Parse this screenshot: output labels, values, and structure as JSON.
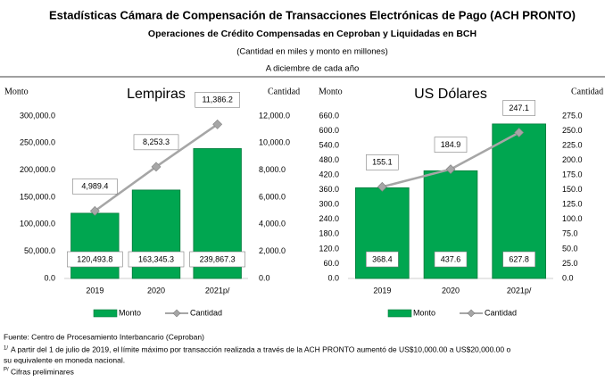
{
  "title": "Estadísticas Cámara de Compensación de Transacciones Electrónicas de Pago (ACH PRONTO)",
  "subtitle": "Operaciones de Crédito Compensadas en Ceproban y Liquidadas en BCH",
  "units_note": "(Cantidad en miles y monto en millones)",
  "date_note": "A diciembre de cada año",
  "chart_data": [
    {
      "type": "bar",
      "title": "Lempiras",
      "y_label": "Monto",
      "y2_label": "Cantidad",
      "categories": [
        "2019",
        "2020",
        "2021p/"
      ],
      "series": [
        {
          "name": "Monto",
          "type": "bar",
          "color": "#00a650",
          "values": [
            120493.8,
            163345.3,
            239867.3
          ],
          "value_labels": [
            "120,493.8",
            "163,345.3",
            "239,867.3"
          ]
        },
        {
          "name": "Cantidad",
          "type": "line",
          "axis": "y2",
          "color": "#a6a6a6",
          "values": [
            4989.4,
            8253.3,
            11386.2
          ],
          "value_labels": [
            "4,989.4",
            "8,253.3",
            "11,386.2"
          ]
        }
      ],
      "ylim": [
        0,
        300000
      ],
      "yticks": [
        {
          "value": 0,
          "label": "0.0"
        },
        {
          "value": 50000,
          "label": "50,000.0"
        },
        {
          "value": 100000,
          "label": "100,000.0"
        },
        {
          "value": 150000,
          "label": "150,000.0"
        },
        {
          "value": 200000,
          "label": "200,000.0"
        },
        {
          "value": 250000,
          "label": "250,000.0"
        },
        {
          "value": 300000,
          "label": "300,000.0"
        }
      ],
      "y2lim": [
        0,
        12000
      ],
      "y2ticks": [
        {
          "value": 0,
          "label": "0.0"
        },
        {
          "value": 2000,
          "label": "2,000.0"
        },
        {
          "value": 4000,
          "label": "4,000.0"
        },
        {
          "value": 6000,
          "label": "6,000.0"
        },
        {
          "value": 8000,
          "label": "8,000.0"
        },
        {
          "value": 10000,
          "label": "10,000.0"
        },
        {
          "value": 12000,
          "label": "12,000.0"
        }
      ],
      "legend": "bottom"
    },
    {
      "type": "bar",
      "title": "US Dólares",
      "y_label": "Monto",
      "y2_label": "Cantidad",
      "categories": [
        "2019",
        "2020",
        "2021p/"
      ],
      "series": [
        {
          "name": "Monto",
          "type": "bar",
          "color": "#00a650",
          "values": [
            368.4,
            437.6,
            627.8
          ]
        },
        {
          "name": "Cantidad",
          "type": "line",
          "axis": "y2",
          "color": "#a6a6a6",
          "values": [
            155.1,
            184.9,
            247.1
          ]
        }
      ],
      "ylim": [
        0,
        660
      ],
      "yticks": [
        {
          "value": 0,
          "label": "0.0"
        },
        {
          "value": 60,
          "label": "60.0"
        },
        {
          "value": 120,
          "label": "120.0"
        },
        {
          "value": 180,
          "label": "180.0"
        },
        {
          "value": 240,
          "label": "240.0"
        },
        {
          "value": 300,
          "label": "300.0"
        },
        {
          "value": 360,
          "label": "360.0"
        },
        {
          "value": 420,
          "label": "420.0"
        },
        {
          "value": 480,
          "label": "480.0"
        },
        {
          "value": 540,
          "label": "540.0"
        },
        {
          "value": 600,
          "label": "600.0"
        },
        {
          "value": 660,
          "label": "660.0"
        }
      ],
      "y2lim": [
        0,
        275
      ],
      "y2ticks": [
        {
          "value": 0,
          "label": "0.0"
        },
        {
          "value": 25,
          "label": "25.0"
        },
        {
          "value": 50,
          "label": "50.0"
        },
        {
          "value": 75,
          "label": "75.0"
        },
        {
          "value": 100,
          "label": "100.0"
        },
        {
          "value": 125,
          "label": "125.0"
        },
        {
          "value": 150,
          "label": "150.0"
        },
        {
          "value": 175,
          "label": "175.0"
        },
        {
          "value": 200,
          "label": "200.0"
        },
        {
          "value": 225,
          "label": "225.0"
        },
        {
          "value": 250,
          "label": "250.0"
        },
        {
          "value": 275,
          "label": "275.0"
        }
      ],
      "legend": "bottom"
    }
  ],
  "footnotes": {
    "source": "Fuente: Centro de Procesamiento Interbancario (Ceproban)",
    "note1_marker": "1/",
    "note1": "A partir del 1 de julio de 2019, el límite máximo por transacción realizada a través de la ACH PRONTO aumentó de US$10,000.00 a US$20,000.00 o",
    "note1_cont": "su equivalente en moneda nacional.",
    "note2_marker": "P/",
    "note2": "Cifras preliminares"
  }
}
